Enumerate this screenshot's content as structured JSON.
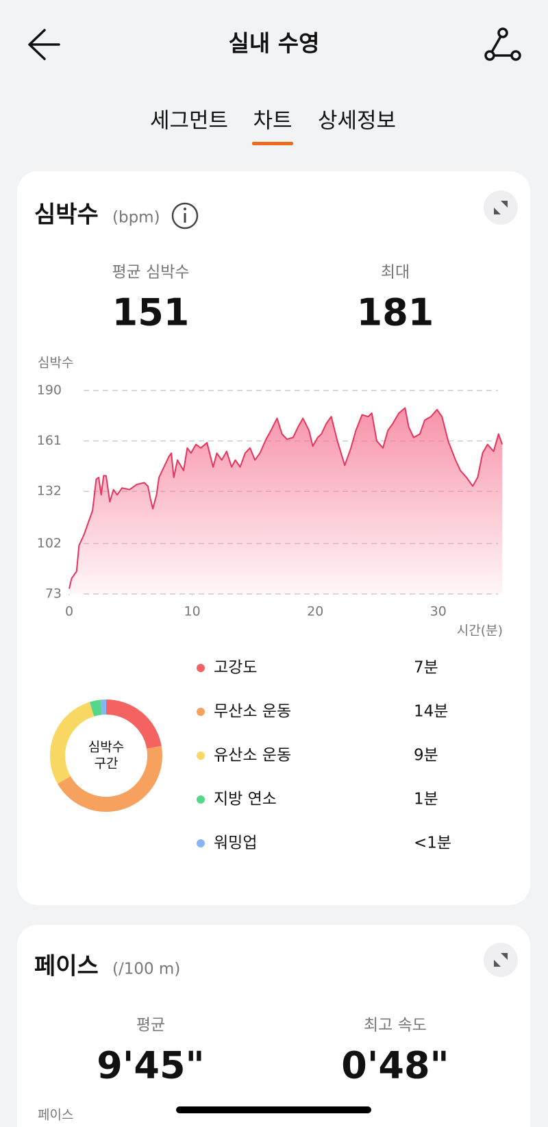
{
  "header": {
    "title": "실내 수영"
  },
  "tabs": [
    "세그먼트",
    "차트",
    "상세정보"
  ],
  "active_tab": 1,
  "heart_rate": {
    "title": "심박수",
    "unit": "(bpm)",
    "stats": [
      {
        "label": "평균 심박수",
        "value": 151
      },
      {
        "label": "최대",
        "value": 181
      }
    ]
  },
  "chart_data": [
    {
      "type": "line",
      "y_label": "심박수",
      "x_label": "시간(분)",
      "color": "#E8345A",
      "x": [
        0,
        0.2,
        0.6,
        0.8,
        1.2,
        1.5,
        1.9,
        2.2,
        2.4,
        2.6,
        2.8,
        3.0,
        3.3,
        3.6,
        3.9,
        4.3,
        4.9,
        5.5,
        6.1,
        6.4,
        6.6,
        6.8,
        7.1,
        7.3,
        7.7,
        8.1,
        8.3,
        8.5,
        8.8,
        9.3,
        9.6,
        9.9,
        10.3,
        10.7,
        11.2,
        11.7,
        12.0,
        12.4,
        12.8,
        13.2,
        13.5,
        13.9,
        14.3,
        14.7,
        15.1,
        15.5,
        16.0,
        16.4,
        16.9,
        17.3,
        17.7,
        18.2,
        18.6,
        19.0,
        19.5,
        19.8,
        20.2,
        20.5,
        20.9,
        21.3,
        21.8,
        22.4,
        22.9,
        23.3,
        23.8,
        24.3,
        24.6,
        25.0,
        25.5,
        25.9,
        26.3,
        26.8,
        27.3,
        27.6,
        28.0,
        28.5,
        28.9,
        29.4,
        29.9,
        30.3,
        30.8,
        31.4,
        31.8,
        32.3,
        32.8,
        33.2,
        33.6,
        34.0,
        34.5,
        34.9,
        35.2
      ],
      "values": [
        76,
        82,
        86,
        101,
        107,
        113,
        121,
        139,
        140,
        130,
        141,
        141,
        126,
        133,
        130,
        134,
        133,
        136,
        137,
        135,
        128,
        122,
        130,
        140,
        146,
        152,
        154,
        140,
        150,
        144,
        157,
        154,
        159,
        157,
        160,
        146,
        154,
        150,
        155,
        146,
        150,
        146,
        154,
        157,
        150,
        154,
        162,
        167,
        174,
        165,
        162,
        163,
        169,
        174,
        167,
        158,
        163,
        165,
        171,
        175,
        161,
        147,
        157,
        167,
        176,
        175,
        177,
        161,
        157,
        167,
        171,
        177,
        180,
        169,
        163,
        165,
        173,
        175,
        179,
        175,
        161,
        150,
        144,
        140,
        135,
        140,
        154,
        159,
        155,
        165,
        159
      ],
      "xlim": [
        0,
        35.3
      ],
      "ylim": [
        73,
        190
      ],
      "xticks": [
        0,
        10,
        20,
        30
      ],
      "yticks": [
        73,
        102,
        132,
        161,
        190
      ],
      "grid": true
    },
    {
      "type": "pie",
      "title_lines": [
        "심박수",
        "구간"
      ],
      "categories": [
        "고강도",
        "무산소 운동",
        "유산소 운동",
        "지방 연소",
        "워밍업"
      ],
      "values": [
        7,
        14,
        9,
        1,
        0.5
      ],
      "value_labels": [
        "7분",
        "14분",
        "9분",
        "1분",
        "<1분"
      ],
      "colors": [
        "#F46262",
        "#F6A15E",
        "#F8D863",
        "#55D68A",
        "#86B7F2"
      ]
    }
  ],
  "pace": {
    "title": "페이스",
    "unit": "(/100 m)",
    "y_label": "페이스",
    "stats": [
      {
        "label": "평균",
        "value": "9'45\""
      },
      {
        "label": "최고 속도",
        "value": "0'48\""
      }
    ]
  }
}
